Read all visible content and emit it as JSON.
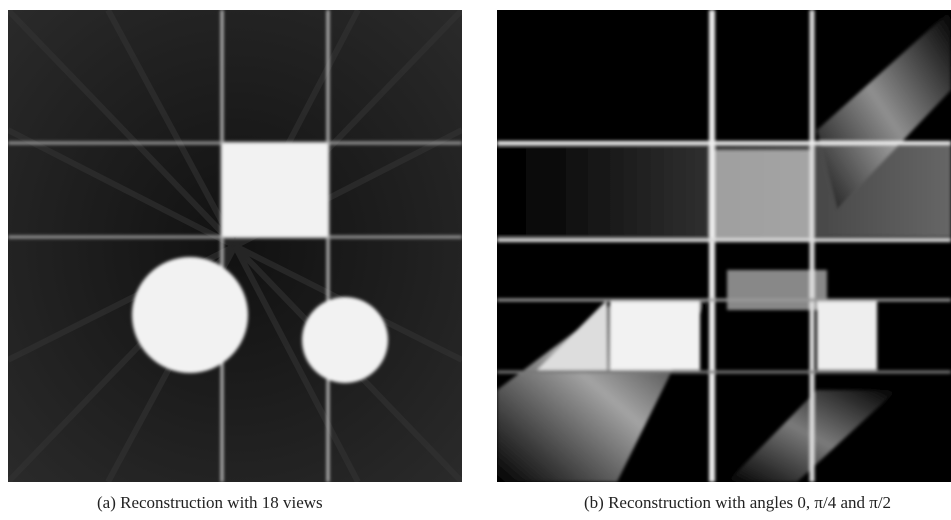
{
  "figures": [
    {
      "caption": "(a)  Reconstruction with 18 views"
    },
    {
      "caption": "(b)  Reconstruction with angles 0, π/4 and π/2"
    }
  ]
}
